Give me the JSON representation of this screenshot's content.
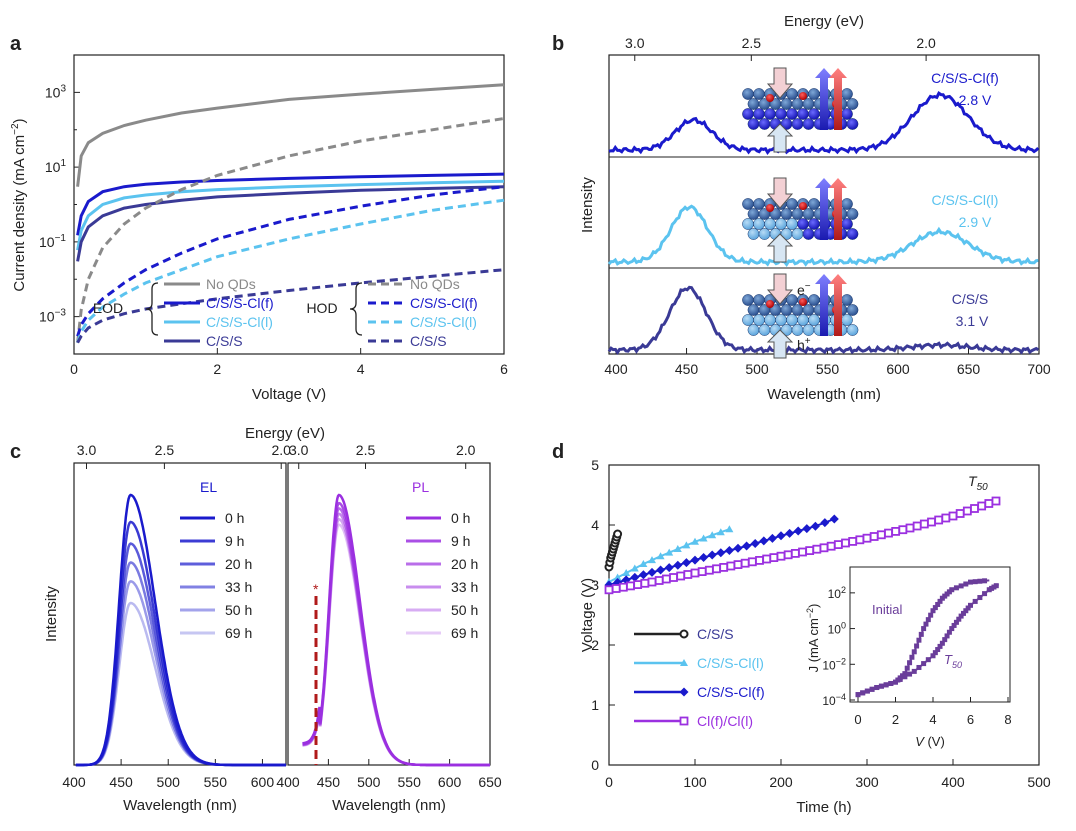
{
  "panels": {
    "a": {
      "label": "a",
      "ylabel": "Current density (mA cm",
      "ylabel_sup": "−2",
      "ylabel_end": ")",
      "xlabel": "Voltage (V)",
      "xticks": [
        "0",
        "2",
        "4",
        "6"
      ],
      "ytick_base": "10",
      "ytick_exps": [
        "3",
        "1",
        "−1",
        "−3"
      ],
      "eod_label": "EOD",
      "hod_label": "HOD",
      "eod_legend": [
        "No QDs",
        "C/S/S-Cl(f)",
        "C/S/S-Cl(l)",
        "C/S/S"
      ],
      "hod_legend": [
        "No QDs",
        "C/S/S-Cl(f)",
        "C/S/S-Cl(l)",
        "C/S/S"
      ]
    },
    "b": {
      "label": "b",
      "top_axis_label": "Energy (eV)",
      "top_ticks": [
        "3.0",
        "2.5",
        "2.0"
      ],
      "xlabel": "Wavelength (nm)",
      "ylabel": "Intensity",
      "xticks": [
        "400",
        "450",
        "500",
        "550",
        "600",
        "650",
        "700"
      ],
      "spectra_labels": [
        {
          "name": "C/S/S-Cl(f)",
          "voltage": "2.8 V"
        },
        {
          "name": "C/S/S-Cl(l)",
          "voltage": "2.9 V"
        },
        {
          "name": "C/S/S",
          "voltage": "3.1 V"
        }
      ],
      "electron_label": "e",
      "electron_sup": "−",
      "hole_label": "h",
      "hole_sup": "+"
    },
    "c": {
      "label": "c",
      "top_axis_label": "Energy (eV)",
      "top_ticks": [
        "3.0",
        "2.5",
        "2.0"
      ],
      "xlabel": "Wavelength (nm)",
      "ylabel": "Intensity",
      "xticks_left": [
        "400",
        "450",
        "500",
        "550",
        "600"
      ],
      "xticks_right": [
        "400",
        "450",
        "500",
        "550",
        "600",
        "650"
      ],
      "el_title": "EL",
      "pl_title": "PL",
      "times": [
        "0 h",
        "9 h",
        "20 h",
        "33 h",
        "50 h",
        "69 h"
      ],
      "asterisk": "*"
    },
    "d": {
      "label": "d",
      "xlabel": "Time (h)",
      "ylabel": "Voltage (V)",
      "xticks": [
        "0",
        "100",
        "200",
        "300",
        "400",
        "500"
      ],
      "yticks": [
        "0",
        "1",
        "2",
        "3",
        "4",
        "5"
      ],
      "t50_main": "T",
      "t50_sub": "50",
      "legend": [
        "C/S/S",
        "C/S/S-Cl(l)",
        "C/S/S-Cl(f)",
        "Cl(f)/Cl(l)"
      ],
      "inset": {
        "ylabel": "J (mA cm",
        "ylabel_sup": "−2",
        "ylabel_end": ")",
        "xlabel_main": "V",
        "xlabel_unit": " (V)",
        "xticks": [
          "0",
          "2",
          "4",
          "6",
          "8"
        ],
        "ytick_base": "10",
        "ytick_exps": [
          "2",
          "0",
          "−2",
          "−4"
        ],
        "initial_label": "Initial",
        "t50_main": "T",
        "t50_sub": "50"
      }
    }
  },
  "colors": {
    "gray": "#8a8a8a",
    "darkblue": "#1a1acc",
    "lightblue": "#5bc3ef",
    "navy": "#3a3a96",
    "black": "#222222",
    "purple": "#9b30e0",
    "inset_purple": "#6a3d9a"
  },
  "chart_data": [
    {
      "panel": "a",
      "type": "line",
      "xlabel": "Voltage (V)",
      "ylabel": "Current density (mA cm−2)",
      "yscale": "log",
      "xlim": [
        0,
        6
      ],
      "ylim": [
        0.0001,
        10000.0
      ],
      "x": [
        0.05,
        0.1,
        0.2,
        0.4,
        0.7,
        1,
        1.5,
        2,
        3,
        4,
        5,
        6
      ],
      "series": [
        {
          "name": "No QDs (EOD)",
          "group": "EOD",
          "style": "solid",
          "color": "gray",
          "values": [
            3,
            20,
            45,
            80,
            130,
            180,
            280,
            380,
            650,
            900,
            1200,
            1600
          ]
        },
        {
          "name": "C/S/S-Cl(f) (EOD)",
          "group": "EOD",
          "style": "solid",
          "color": "darkblue",
          "values": [
            0.15,
            0.5,
            1.2,
            2.2,
            3.0,
            3.5,
            4.0,
            4.4,
            5.0,
            5.5,
            6.0,
            6.5
          ]
        },
        {
          "name": "C/S/S-Cl(l) (EOD)",
          "group": "EOD",
          "style": "solid",
          "color": "lightblue",
          "values": [
            0.06,
            0.2,
            0.5,
            1.0,
            1.5,
            1.8,
            2.2,
            2.5,
            3.0,
            3.4,
            3.8,
            4.2
          ]
        },
        {
          "name": "C/S/S (EOD)",
          "group": "EOD",
          "style": "solid",
          "color": "navy",
          "values": [
            0.03,
            0.1,
            0.25,
            0.5,
            0.8,
            1.0,
            1.3,
            1.6,
            2.0,
            2.4,
            2.7,
            3.0
          ]
        },
        {
          "name": "No QDs (HOD)",
          "group": "HOD",
          "style": "dashed",
          "color": "gray",
          "values": [
            0.0002,
            0.0015,
            0.01,
            0.07,
            0.3,
            0.8,
            2.5,
            6,
            20,
            50,
            100,
            200
          ]
        },
        {
          "name": "C/S/S-Cl(f) (HOD)",
          "group": "HOD",
          "style": "dashed",
          "color": "darkblue",
          "values": [
            0.0003,
            0.0006,
            0.0012,
            0.003,
            0.008,
            0.018,
            0.05,
            0.12,
            0.4,
            0.9,
            1.8,
            3.0
          ]
        },
        {
          "name": "C/S/S-Cl(l) (HOD)",
          "group": "HOD",
          "style": "dashed",
          "color": "lightblue",
          "values": [
            0.0002,
            0.0004,
            0.0008,
            0.0018,
            0.004,
            0.008,
            0.018,
            0.04,
            0.12,
            0.3,
            0.7,
            1.3
          ]
        },
        {
          "name": "C/S/S (HOD)",
          "group": "HOD",
          "style": "dashed",
          "color": "navy",
          "values": [
            0.0002,
            0.0003,
            0.0005,
            0.0008,
            0.0012,
            0.0016,
            0.0022,
            0.003,
            0.005,
            0.008,
            0.012,
            0.018
          ]
        }
      ]
    },
    {
      "panel": "b",
      "type": "line",
      "xlabel": "Wavelength (nm)",
      "ylabel": "Intensity",
      "xlim": [
        395,
        700
      ],
      "top_axis": "Energy (eV)",
      "series": [
        {
          "name": "C/S/S-Cl(f)",
          "color": "darkblue",
          "peaks": [
            {
              "wavelength": 455,
              "relative_height": 0.3
            },
            {
              "wavelength": 630,
              "relative_height": 0.55
            }
          ]
        },
        {
          "name": "C/S/S-Cl(l)",
          "color": "lightblue",
          "peaks": [
            {
              "wavelength": 452,
              "relative_height": 0.55
            },
            {
              "wavelength": 630,
              "relative_height": 0.3
            }
          ]
        },
        {
          "name": "C/S/S",
          "color": "navy",
          "peaks": [
            {
              "wavelength": 451,
              "relative_height": 0.62
            },
            {
              "wavelength": 630,
              "relative_height": 0.05
            }
          ]
        }
      ]
    },
    {
      "panel": "c",
      "type": "line",
      "xlabel": "Wavelength (nm)",
      "ylabel": "Intensity",
      "subplots": [
        {
          "name": "EL",
          "xlim": [
            400,
            625
          ],
          "peak_wavelength": 460,
          "times_h": [
            0,
            9,
            20,
            33,
            50,
            69
          ],
          "relative_peak": [
            1.0,
            0.9,
            0.82,
            0.75,
            0.68,
            0.6
          ]
        },
        {
          "name": "PL",
          "xlim": [
            400,
            650
          ],
          "peak_wavelength": 463,
          "times_h": [
            0,
            9,
            20,
            33,
            50,
            69
          ],
          "relative_peak": [
            1.0,
            0.97,
            0.95,
            0.93,
            0.91,
            0.89
          ],
          "marker_wavelength": 432
        }
      ]
    },
    {
      "panel": "d",
      "type": "scatter",
      "xlabel": "Time (h)",
      "ylabel": "Voltage (V)",
      "xlim": [
        0,
        500
      ],
      "ylim": [
        0,
        5
      ],
      "series": [
        {
          "name": "C/S/S",
          "color": "black",
          "marker": "circle",
          "x": [
            0,
            2,
            4,
            6,
            8,
            10
          ],
          "y": [
            3.3,
            3.45,
            3.55,
            3.65,
            3.75,
            3.85
          ]
        },
        {
          "name": "C/S/S-Cl(l)",
          "color": "lightblue",
          "marker": "triangle",
          "x": [
            0,
            20,
            40,
            60,
            80,
            100,
            120,
            140
          ],
          "y": [
            3.05,
            3.2,
            3.35,
            3.48,
            3.6,
            3.72,
            3.83,
            3.93
          ]
        },
        {
          "name": "C/S/S-Cl(f)",
          "color": "darkblue",
          "marker": "diamond",
          "x": [
            0,
            40,
            80,
            120,
            160,
            200,
            240,
            262
          ],
          "y": [
            3.0,
            3.17,
            3.33,
            3.5,
            3.65,
            3.82,
            3.98,
            4.1
          ]
        },
        {
          "name": "Cl(f)/Cl(l)",
          "color": "purple",
          "marker": "square",
          "x": [
            0,
            50,
            100,
            150,
            200,
            250,
            300,
            350,
            400,
            450
          ],
          "y": [
            2.92,
            3.05,
            3.2,
            3.34,
            3.48,
            3.62,
            3.78,
            3.95,
            4.15,
            4.4
          ]
        }
      ],
      "inset": {
        "type": "scatter",
        "xlabel": "V (V)",
        "ylabel": "J (mA cm−2)",
        "yscale": "log",
        "xlim": [
          0,
          8
        ],
        "ylim": [
          0.0001,
          1000.0
        ],
        "series": [
          {
            "name": "Initial",
            "x": [
              0,
              1,
              2,
              2.5,
              3,
              3.5,
              4,
              4.5,
              5,
              6,
              7
            ],
            "y": [
              0.0002,
              0.0005,
              0.001,
              0.003,
              0.05,
              1,
              10,
              50,
              150,
              400,
              500
            ]
          },
          {
            "name": "T50",
            "x": [
              0,
              1,
              2,
              3,
              4,
              4.5,
              5,
              5.5,
              6,
              7,
              7.5
            ],
            "y": [
              0.0002,
              0.0005,
              0.001,
              0.004,
              0.03,
              0.15,
              1,
              5,
              20,
              150,
              300
            ]
          }
        ]
      }
    }
  ]
}
